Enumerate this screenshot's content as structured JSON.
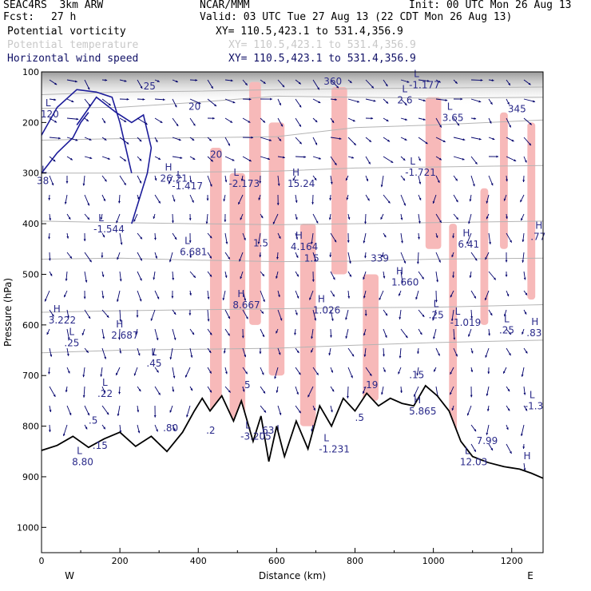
{
  "header": {
    "model": "SEAC4RS  3km ARW",
    "org": "NCAR/MMM",
    "init": "Init: 00 UTC Mon 26 Aug 13",
    "fcst_label": "Fcst:",
    "fcst_value": "27 h",
    "valid": "Valid: 03 UTC Tue 27 Aug 13 (22 CDT Mon 26 Aug 13)",
    "fields": [
      {
        "name": "Potential vorticity",
        "xy": "XY= 110.5,423.1 to 531.4,356.9",
        "color": "#000000"
      },
      {
        "name": "Potential temperature",
        "xy": "XY= 110.5,423.1 to 531.4,356.9",
        "color": "#c8c8c8"
      },
      {
        "name": "Horizontal wind speed",
        "xy": "XY= 110.5,423.1 to 531.4,356.9",
        "color": "#101066"
      }
    ]
  },
  "chart_data": {
    "type": "cross-section",
    "xlabel": "Distance (km)",
    "ylabel": "Pressure (hPa)",
    "xlim": [
      0,
      1280
    ],
    "ylim": [
      1050,
      100
    ],
    "x_ticks": [
      0,
      200,
      400,
      600,
      800,
      1000,
      1200
    ],
    "y_ticks": [
      100,
      200,
      300,
      400,
      500,
      600,
      700,
      800,
      900,
      1000
    ],
    "west_label": "W",
    "east_label": "E",
    "colors": {
      "pv_shade": "#f7b9b9",
      "terrain": "#000000",
      "theta": "#b4b4b4",
      "wind": "#00006b"
    },
    "terrain": {
      "x": [
        0,
        40,
        80,
        120,
        160,
        200,
        240,
        280,
        320,
        360,
        390,
        410,
        430,
        460,
        490,
        510,
        540,
        560,
        580,
        600,
        620,
        650,
        680,
        710,
        740,
        770,
        800,
        830,
        860,
        890,
        920,
        950,
        980,
        1010,
        1040,
        1070,
        1100,
        1140,
        1180,
        1220,
        1250,
        1280
      ],
      "p": [
        848,
        838,
        820,
        842,
        825,
        812,
        840,
        820,
        850,
        812,
        770,
        745,
        770,
        740,
        790,
        750,
        830,
        780,
        870,
        800,
        860,
        790,
        845,
        760,
        800,
        745,
        770,
        735,
        760,
        745,
        755,
        760,
        720,
        740,
        770,
        830,
        860,
        872,
        880,
        885,
        893,
        903
      ]
    },
    "theta": [
      {
        "label": "",
        "x": [
          0,
          200,
          400,
          600,
          800,
          1000,
          1280
        ],
        "p": [
          145,
          140,
          138,
          135,
          133,
          132,
          130
        ]
      },
      {
        "label": "360",
        "x": [
          0,
          200,
          400,
          600,
          800,
          1000,
          1280
        ],
        "p": [
          172,
          170,
          160,
          148,
          150,
          152,
          150
        ]
      },
      {
        "label": "345",
        "x": [
          0,
          200,
          400,
          600,
          800,
          1000,
          1280
        ],
        "p": [
          235,
          232,
          230,
          228,
          210,
          205,
          195
        ]
      },
      {
        "label": "",
        "x": [
          0,
          200,
          400,
          600,
          800,
          1000,
          1280
        ],
        "p": [
          300,
          300,
          298,
          296,
          290,
          288,
          285
        ]
      },
      {
        "label": "",
        "x": [
          0,
          200,
          400,
          600,
          800,
          1000,
          1280
        ],
        "p": [
          395,
          398,
          400,
          402,
          400,
          398,
          395
        ]
      },
      {
        "label": "339",
        "x": [
          0,
          200,
          400,
          600,
          800,
          1000,
          1280
        ],
        "p": [
          470,
          468,
          472,
          475,
          474,
          470,
          468
        ]
      },
      {
        "label": "",
        "x": [
          0,
          200,
          400,
          600,
          800,
          1000,
          1280
        ],
        "p": [
          575,
          572,
          570,
          568,
          566,
          565,
          560
        ]
      },
      {
        "label": "",
        "x": [
          0,
          200,
          400,
          600,
          800,
          1000,
          1280
        ],
        "p": [
          655,
          650,
          648,
          646,
          640,
          635,
          630
        ]
      }
    ],
    "wind_contours": [
      {
        "label": "20",
        "x": [
          90,
          140,
          190,
          230,
          260,
          280,
          270,
          250,
          230
        ],
        "p": [
          205,
          150,
          180,
          200,
          185,
          250,
          300,
          350,
          400
        ]
      },
      {
        "label": "25",
        "x": [
          0,
          40,
          90,
          140,
          180,
          200,
          230
        ],
        "p": [
          225,
          170,
          135,
          140,
          150,
          200,
          300
        ]
      },
      {
        "label": "",
        "x": [
          0,
          40,
          80,
          100,
          120
        ],
        "p": [
          300,
          260,
          230,
          200,
          180
        ]
      }
    ],
    "pv_regions": [
      {
        "x": [
          430,
          460
        ],
        "p": [
          250,
          800
        ]
      },
      {
        "x": [
          480,
          520
        ],
        "p": [
          300,
          820
        ]
      },
      {
        "x": [
          530,
          560
        ],
        "p": [
          120,
          600
        ]
      },
      {
        "x": [
          580,
          620
        ],
        "p": [
          200,
          700
        ]
      },
      {
        "x": [
          660,
          700
        ],
        "p": [
          400,
          800
        ]
      },
      {
        "x": [
          740,
          780
        ],
        "p": [
          130,
          500
        ]
      },
      {
        "x": [
          820,
          860
        ],
        "p": [
          500,
          750
        ]
      },
      {
        "x": [
          980,
          1020
        ],
        "p": [
          150,
          450
        ]
      },
      {
        "x": [
          1040,
          1060
        ],
        "p": [
          400,
          850
        ]
      },
      {
        "x": [
          1120,
          1140
        ],
        "p": [
          330,
          600
        ]
      },
      {
        "x": [
          1170,
          1190
        ],
        "p": [
          180,
          450
        ]
      },
      {
        "x": [
          1240,
          1260
        ],
        "p": [
          200,
          550
        ]
      }
    ],
    "extrema": [
      {
        "type": "L",
        "x": 10,
        "p": 168,
        "label": "120"
      },
      {
        "type": "L",
        "x": 0,
        "p": 300,
        "label": "38"
      },
      {
        "type": "L",
        "x": 145,
        "p": 395,
        "label": "-1.544"
      },
      {
        "type": "H",
        "x": 315,
        "p": 295,
        "label": "26.21"
      },
      {
        "type": "L",
        "x": 345,
        "p": 310,
        "label": "-1.417"
      },
      {
        "type": "L",
        "x": 365,
        "p": 440,
        "label": "6.681"
      },
      {
        "type": "L",
        "x": 490,
        "p": 305,
        "label": "-2.173"
      },
      {
        "type": "H",
        "x": 640,
        "p": 305,
        "label": "15.24"
      },
      {
        "type": "H",
        "x": 648,
        "p": 430,
        "label": "4.164"
      },
      {
        "type": "L",
        "x": 940,
        "p": 283,
        "label": "-1.721"
      },
      {
        "type": "L",
        "x": 920,
        "p": 140,
        "label": "2.6"
      },
      {
        "type": "L",
        "x": 950,
        "p": 110,
        "label": "-1.177"
      },
      {
        "type": "L",
        "x": 1035,
        "p": 175,
        "label": "3.65"
      },
      {
        "type": "H",
        "x": 1075,
        "p": 425,
        "label": "6.41"
      },
      {
        "type": "H",
        "x": 1260,
        "p": 410,
        "label": ".77"
      },
      {
        "type": "H",
        "x": 905,
        "p": 500,
        "label": "1.660"
      },
      {
        "type": "H",
        "x": 500,
        "p": 545,
        "label": "8.667"
      },
      {
        "type": "H",
        "x": 705,
        "p": 555,
        "label": "1.026"
      },
      {
        "type": "L",
        "x": 1000,
        "p": 565,
        "label": ".25"
      },
      {
        "type": "L",
        "x": 1055,
        "p": 580,
        "label": "-1.019"
      },
      {
        "type": "L",
        "x": 1180,
        "p": 595,
        "label": ".25"
      },
      {
        "type": "H",
        "x": 1250,
        "p": 600,
        "label": ".83"
      },
      {
        "type": "H",
        "x": 30,
        "p": 575,
        "label": "3.222"
      },
      {
        "type": "L",
        "x": 70,
        "p": 620,
        "label": ".25"
      },
      {
        "type": "H",
        "x": 190,
        "p": 605,
        "label": "2.687"
      },
      {
        "type": "L",
        "x": 280,
        "p": 660,
        "label": ".45"
      },
      {
        "type": "L",
        "x": 155,
        "p": 720,
        "label": ".22"
      },
      {
        "type": "L",
        "x": 1245,
        "p": 745,
        "label": "-1.3"
      },
      {
        "type": "L",
        "x": 520,
        "p": 805,
        "label": "-3.205"
      },
      {
        "type": "L",
        "x": 720,
        "p": 830,
        "label": "-1.231"
      },
      {
        "type": "H",
        "x": 950,
        "p": 755,
        "label": "5.865"
      },
      {
        "type": "L",
        "x": 1080,
        "p": 855,
        "label": "12.03"
      },
      {
        "type": "H",
        "x": 1230,
        "p": 865,
        "label": ""
      },
      {
        "type": "L",
        "x": 90,
        "p": 855,
        "label": "8.80"
      }
    ],
    "contour_labels": [
      {
        "text": "360",
        "x": 720,
        "p": 125,
        "color": "#bdbdbd"
      },
      {
        "text": "345",
        "x": 1190,
        "p": 180,
        "color": "#bdbdbd"
      },
      {
        "text": "339",
        "x": 840,
        "p": 475,
        "color": "#bdbdbd"
      },
      {
        "text": "20",
        "x": 375,
        "p": 175,
        "color": "#2a2a8a"
      },
      {
        "text": "25",
        "x": 260,
        "p": 135,
        "color": "#2a2a8a"
      },
      {
        "text": "20",
        "x": 430,
        "p": 270,
        "color": "#2a2a8a"
      },
      {
        "text": "1.5",
        "x": 540,
        "p": 445,
        "color": "#2a2a8a"
      },
      {
        "text": "1.5",
        "x": 670,
        "p": 475,
        "color": "#2a2a8a"
      },
      {
        "text": ".15",
        "x": 938,
        "p": 705,
        "color": "#2a2a8a"
      },
      {
        "text": ".19",
        "x": 820,
        "p": 725,
        "color": "#2a2a8a"
      },
      {
        "text": ".5",
        "x": 510,
        "p": 725,
        "color": "#2a2a8a"
      },
      {
        "text": ".5",
        "x": 800,
        "p": 790,
        "color": "#2a2a8a"
      },
      {
        "text": ".5",
        "x": 120,
        "p": 795,
        "color": "#2a2a8a"
      },
      {
        "text": ".2",
        "x": 420,
        "p": 815,
        "color": "#2a2a8a"
      },
      {
        "text": ".63",
        "x": 555,
        "p": 815,
        "color": "#2a2a8a"
      },
      {
        "text": ".80",
        "x": 310,
        "p": 810,
        "color": "#2a2a8a"
      },
      {
        "text": ".15",
        "x": 130,
        "p": 845,
        "color": "#2a2a8a"
      },
      {
        "text": "7.99",
        "x": 1110,
        "p": 835,
        "color": "#2a2a8a"
      }
    ]
  }
}
